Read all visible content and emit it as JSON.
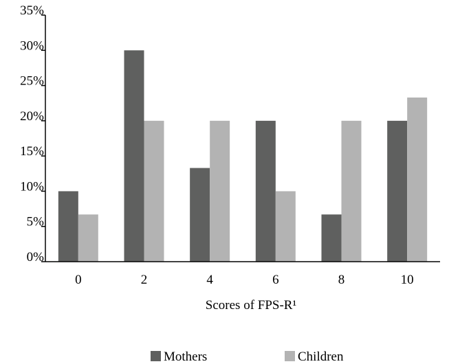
{
  "chart_data": {
    "type": "bar",
    "categories": [
      "0",
      "2",
      "4",
      "6",
      "8",
      "10"
    ],
    "series": [
      {
        "name": "Mothers",
        "values": [
          10,
          30,
          13.3,
          20,
          6.7,
          20
        ],
        "color": "#5f605f"
      },
      {
        "name": "Children",
        "values": [
          6.7,
          20,
          20,
          10,
          20,
          23.3
        ],
        "color": "#b3b3b3"
      }
    ],
    "xlabel": "Scores of FPS-R¹",
    "ylabel": "",
    "ylim": [
      0,
      35
    ],
    "yticks": [
      "0%",
      "5%",
      "10%",
      "15%",
      "20%",
      "25%",
      "30%",
      "35%"
    ],
    "grid": false,
    "legend_position": "bottom"
  }
}
